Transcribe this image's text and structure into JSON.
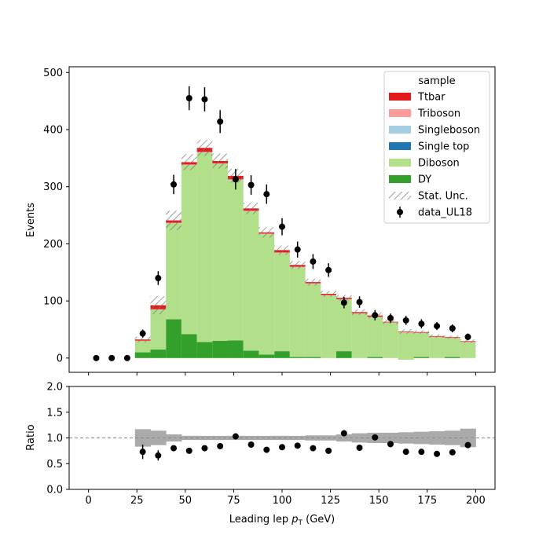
{
  "chart_data": {
    "type": "bar",
    "main": {
      "ylabel": "Events",
      "ylim": [
        -25,
        510
      ],
      "yticks": [
        "0",
        "100",
        "200",
        "300",
        "400",
        "500"
      ],
      "bin_edges": [
        0,
        8,
        16,
        24,
        32,
        40,
        48,
        56,
        64,
        72,
        80,
        88,
        96,
        104,
        112,
        120,
        128,
        136,
        144,
        152,
        160,
        168,
        176,
        184,
        192,
        200
      ],
      "stack": [
        {
          "name": "DY",
          "color": "#33a02c",
          "values": [
            0,
            0,
            0,
            10,
            15,
            68,
            42,
            28,
            30,
            31,
            13,
            6,
            12,
            2,
            2,
            0,
            12,
            0,
            2,
            0,
            -3,
            2,
            0,
            2,
            0
          ]
        },
        {
          "name": "Diboson",
          "color": "#b2df8a",
          "values": [
            0,
            0,
            0,
            20,
            70,
            168,
            296,
            332,
            310,
            280,
            244,
            211,
            172,
            157,
            128,
            110,
            91,
            78,
            70,
            62,
            48,
            42,
            37,
            33,
            28
          ]
        },
        {
          "name": "Single top",
          "color": "#1f78b4",
          "values": [
            0,
            0,
            0,
            0,
            0,
            0,
            0,
            0,
            0,
            0,
            0,
            0,
            0,
            0,
            0,
            0,
            0,
            0,
            0,
            0,
            0,
            0,
            0,
            0,
            0
          ]
        },
        {
          "name": "Singleboson",
          "color": "#a6cee3",
          "values": [
            0,
            0,
            0,
            0,
            0,
            0,
            0,
            0,
            0,
            1,
            0,
            0,
            0,
            0,
            0,
            0,
            0,
            0,
            0,
            0,
            0,
            0,
            0,
            0,
            0
          ]
        },
        {
          "name": "Triboson",
          "color": "#fb9a99",
          "values": [
            0,
            0,
            0,
            0.5,
            0.5,
            1,
            1,
            1,
            1,
            1,
            1,
            1,
            1,
            1,
            1,
            0.5,
            0.5,
            0.5,
            0.5,
            0.5,
            0.5,
            0.5,
            0.5,
            0.5,
            0.5
          ]
        },
        {
          "name": "Ttbar",
          "color": "#e31a1c",
          "values": [
            0,
            0,
            0,
            2,
            7,
            4,
            4,
            7,
            4,
            6,
            4,
            2,
            4,
            3,
            2,
            2,
            2,
            2,
            2,
            1,
            1,
            1,
            1,
            1,
            1
          ]
        }
      ],
      "stat_unc": [
        0,
        0,
        0,
        5,
        16,
        17,
        14,
        14,
        13,
        12,
        10,
        9,
        8,
        7,
        6,
        5,
        5,
        5,
        5,
        4,
        4,
        3,
        3,
        3,
        3
      ],
      "data": {
        "name": "data_UL18",
        "x": [
          4,
          12,
          20,
          28,
          36,
          44,
          52,
          60,
          68,
          76,
          84,
          92,
          100,
          108,
          116,
          124,
          132,
          140,
          148,
          156,
          164,
          172,
          180,
          188,
          196
        ],
        "y": [
          0,
          0,
          0,
          43,
          140,
          304,
          455,
          453,
          414,
          313,
          303,
          287,
          230,
          190,
          169,
          154,
          97,
          98,
          75,
          70,
          66,
          60,
          56,
          52,
          37
        ],
        "err": [
          0,
          0,
          0,
          7,
          12,
          17,
          21,
          21,
          20,
          18,
          17,
          17,
          15,
          14,
          13,
          12,
          10,
          10,
          9,
          8,
          8,
          8,
          7,
          7,
          6
        ]
      },
      "legend": {
        "title": "sample",
        "entries": [
          "Ttbar",
          "Triboson",
          "Singleboson",
          "Single top",
          "Diboson",
          "DY",
          "Stat. Unc.",
          "data_UL18"
        ],
        "placement": "top-right"
      }
    },
    "ratio": {
      "ylabel": "Ratio",
      "ylim": [
        0,
        2
      ],
      "yticks": [
        "0.0",
        "0.5",
        "1.0",
        "1.5",
        "2.0"
      ],
      "reference_line": 1.0,
      "band_halfwidth": [
        0,
        0,
        0,
        0.17,
        0.14,
        0.07,
        0.04,
        0.04,
        0.04,
        0.04,
        0.04,
        0.04,
        0.04,
        0.04,
        0.05,
        0.05,
        0.07,
        0.09,
        0.1,
        0.1,
        0.11,
        0.12,
        0.13,
        0.14,
        0.18
      ],
      "x": [
        28,
        36,
        44,
        52,
        60,
        68,
        76,
        84,
        92,
        100,
        108,
        116,
        124,
        132,
        140,
        148,
        156,
        164,
        172,
        180,
        188,
        196
      ],
      "y": [
        0.73,
        0.66,
        0.8,
        0.75,
        0.8,
        0.84,
        1.03,
        0.87,
        0.77,
        0.82,
        0.85,
        0.8,
        0.75,
        1.09,
        0.81,
        1.01,
        0.88,
        0.73,
        0.73,
        0.69,
        0.72,
        0.86
      ],
      "err": [
        0.14,
        0.1,
        0.03,
        0.03,
        0.03,
        0.03,
        0.04,
        0.04,
        0.03,
        0.04,
        0.04,
        0.04,
        0.04,
        0.06,
        0.06,
        0.05,
        0.06,
        0.05,
        0.05,
        0.05,
        0.05,
        0.05
      ]
    },
    "x_axis": {
      "label_prefix": "Leading lep ",
      "label_var": "p",
      "label_sub": "T",
      "label_suffix": " (GeV)",
      "xlim": [
        -10,
        210
      ],
      "xticks": [
        "0",
        "25",
        "50",
        "75",
        "100",
        "125",
        "150",
        "175",
        "200"
      ]
    }
  }
}
